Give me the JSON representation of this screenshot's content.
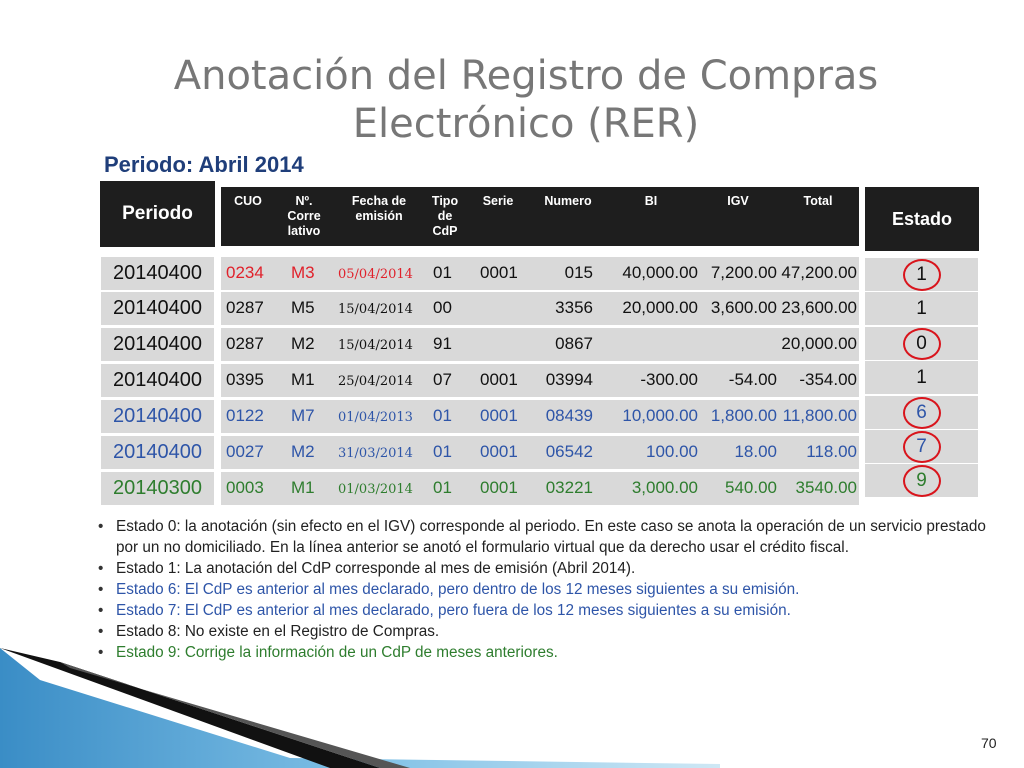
{
  "title_line1": "Anotación del Registro de Compras",
  "title_line2": "Electrónico (RER)",
  "periodo_caption": "Periodo: Abril 2014",
  "periodo_header": "Periodo",
  "estado_header": "Estado",
  "columns": {
    "cuo": "CUO",
    "correlativo": [
      "Nº.",
      "Corre",
      "lativo"
    ],
    "fecha": [
      "Fecha de",
      "emisión"
    ],
    "tipo": [
      "Tipo",
      "de",
      "CdP"
    ],
    "serie": "Serie",
    "numero": "Numero",
    "bi": "BI",
    "igv": "IGV",
    "total": "Total"
  },
  "rows": [
    {
      "periodo": "20140400",
      "cuo": "0234",
      "corr": "M3",
      "fecha": "05/04/2014",
      "tipo": "01",
      "serie": "0001",
      "numero": "015",
      "bi": "40,000.00",
      "igv": "7,200.00",
      "total": "47,200.00",
      "estado": "1",
      "circled": true,
      "color": "#e0212b"
    },
    {
      "periodo": "20140400",
      "cuo": "0287",
      "corr": "M5",
      "fecha": "15/04/2014",
      "tipo": "00",
      "serie": "",
      "numero": "3356",
      "bi": "20,000.00",
      "igv": "3,600.00",
      "total": "23,600.00",
      "estado": "1",
      "circled": false,
      "color": "#111111"
    },
    {
      "periodo": "20140400",
      "cuo": "0287",
      "corr": "M2",
      "fecha": "15/04/2014",
      "tipo": "91",
      "serie": "",
      "numero": "0867",
      "bi": "",
      "igv": "",
      "total": "20,000.00",
      "estado": "0",
      "circled": true,
      "color": "#111111"
    },
    {
      "periodo": "20140400",
      "cuo": "0395",
      "corr": "M1",
      "fecha": "25/04/2014",
      "tipo": "07",
      "serie": "0001",
      "numero": "03994",
      "bi": "-300.00",
      "igv": "-54.00",
      "total": "-354.00",
      "estado": "1",
      "circled": false,
      "color": "#111111"
    },
    {
      "periodo": "20140400",
      "cuo": "0122",
      "corr": "M7",
      "fecha": "01/04/2013",
      "tipo": "01",
      "serie": "0001",
      "numero": "08439",
      "bi": "10,000.00",
      "igv": "1,800.00",
      "total": "11,800.00",
      "estado": "6",
      "circled": true,
      "color": "#2e55a8"
    },
    {
      "periodo": "20140400",
      "cuo": "0027",
      "corr": "M2",
      "fecha": "31/03/2014",
      "tipo": "01",
      "serie": "0001",
      "numero": "06542",
      "bi": "100.00",
      "igv": "18.00",
      "total": "118.00",
      "estado": "7",
      "circled": true,
      "color": "#2e55a8"
    },
    {
      "periodo": "20140300",
      "cuo": "0003",
      "corr": "M1",
      "fecha": "01/03/2014",
      "tipo": "01",
      "serie": "0001",
      "numero": "03221",
      "bi": "3,000.00",
      "igv": "540.00",
      "total": "3540.00",
      "estado": "9",
      "circled": true,
      "color": "#2e7d2e"
    }
  ],
  "notes": [
    {
      "text": "Estado 0: la anotación (sin efecto en el IGV) corresponde al periodo. En este caso se anota la operación de un servicio prestado por un no domiciliado. En la línea anterior se anotó el formulario virtual que da derecho usar el crédito fiscal.",
      "color": "#222222"
    },
    {
      "text": "Estado 1: La anotación del CdP corresponde al mes de emisión (Abril 2014).",
      "color": "#222222"
    },
    {
      "text": "Estado 6: El CdP es anterior al mes declarado, pero dentro de los 12 meses siguientes a su emisión.",
      "color": "#2e55a8"
    },
    {
      "text": "Estado 7: El CdP es anterior al mes declarado, pero fuera  de los 12 meses siguientes a su emisión.",
      "color": "#2e55a8"
    },
    {
      "text": "Estado 8: No existe en el Registro de Compras.",
      "color": "#222222"
    },
    {
      "text": "Estado 9: Corrige la información de un CdP de meses anteriores.",
      "color": "#2e7d2e"
    }
  ],
  "page_number": "70"
}
